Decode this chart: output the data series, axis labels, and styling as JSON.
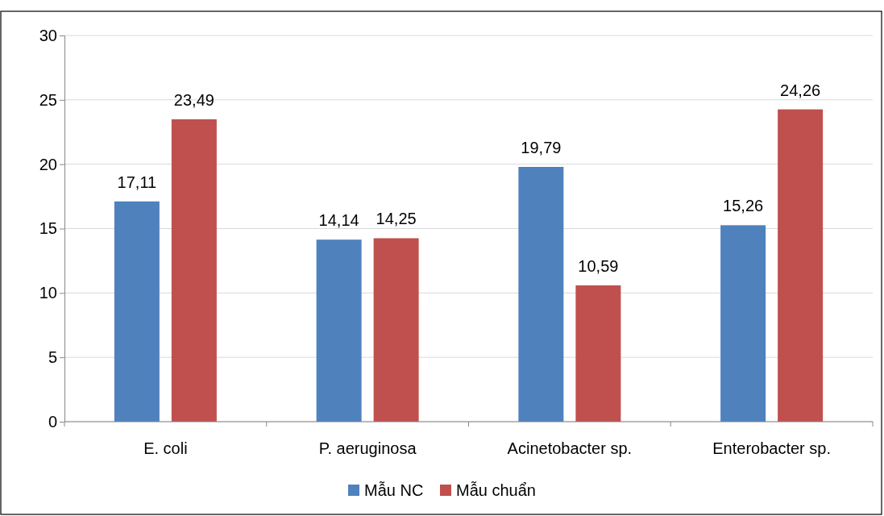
{
  "chart_data": {
    "type": "bar",
    "categories": [
      "E. coli",
      "P. aeruginosa",
      "Acinetobacter sp.",
      "Enterobacter sp."
    ],
    "series": [
      {
        "name": "Mẫu NC",
        "color": "#4f81bd",
        "values": [
          17.11,
          14.14,
          19.79,
          15.26
        ],
        "value_labels": [
          "17,11",
          "14,14",
          "19,79",
          "15,26"
        ]
      },
      {
        "name": "Mẫu chuẩn",
        "color": "#c0504d",
        "values": [
          23.49,
          14.25,
          10.59,
          24.26
        ],
        "value_labels": [
          "23,49",
          "14,25",
          "10,59",
          "24,26"
        ]
      }
    ],
    "ylim": [
      0,
      30
    ],
    "yticks": [
      0,
      5,
      10,
      15,
      20,
      25,
      30
    ],
    "grid": "y",
    "legend": "bottom"
  }
}
